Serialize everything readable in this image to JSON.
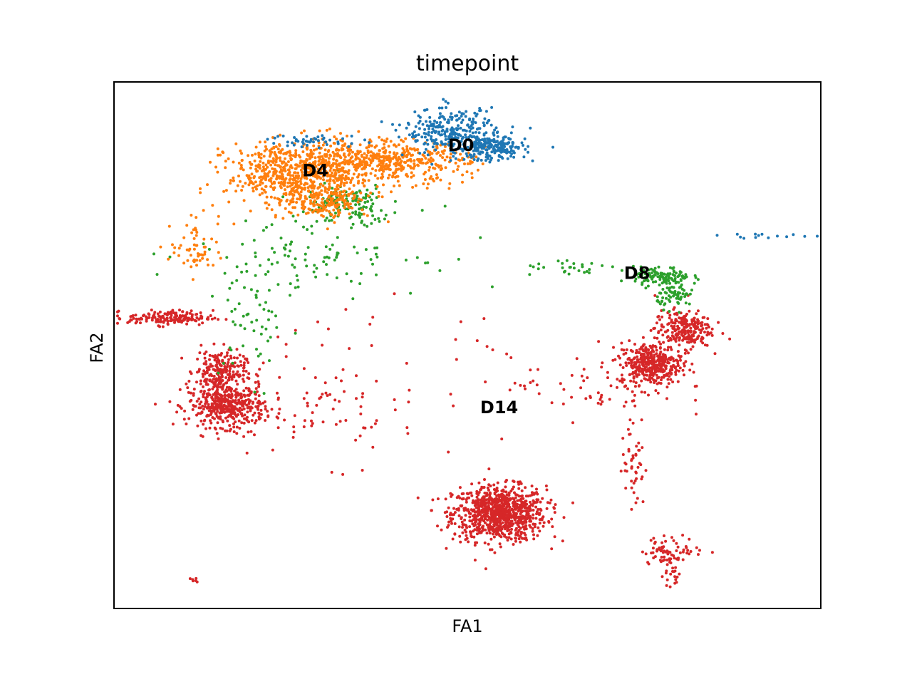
{
  "chart_data": {
    "type": "scatter",
    "title": "timepoint",
    "xlabel": "FA1",
    "ylabel": "FA2",
    "xlim": [
      0,
      100
    ],
    "ylim": [
      0,
      100
    ],
    "grid": false,
    "legend": "on-data",
    "series": [
      {
        "name": "D0",
        "color": "#1f77b4",
        "label_pos": [
          49.1,
          87.8
        ],
        "clusters": [
          {
            "cx": 47.5,
            "cy": 90.5,
            "sx": 3.2,
            "sy": 2.2,
            "n": 260
          },
          {
            "cx": 53.5,
            "cy": 87.5,
            "sx": 2.4,
            "sy": 1.2,
            "n": 220
          },
          {
            "cx": 28.5,
            "cy": 88.8,
            "sx": 3.5,
            "sy": 0.6,
            "n": 45
          },
          {
            "cx": 92.5,
            "cy": 70.8,
            "sx": 3.5,
            "sy": 0.3,
            "n": 14
          }
        ]
      },
      {
        "name": "D4",
        "color": "#ff7f0e",
        "label_pos": [
          28.5,
          83.0
        ],
        "clusters": [
          {
            "cx": 26.0,
            "cy": 82.5,
            "sx": 5.0,
            "sy": 3.0,
            "n": 650
          },
          {
            "cx": 38.0,
            "cy": 85.0,
            "sx": 6.0,
            "sy": 2.0,
            "n": 500
          },
          {
            "cx": 30.0,
            "cy": 77.5,
            "sx": 3.0,
            "sy": 1.6,
            "n": 160
          },
          {
            "cx": 12.0,
            "cy": 68.5,
            "sx": 2.0,
            "sy": 2.6,
            "n": 60
          }
        ]
      },
      {
        "name": "D8",
        "color": "#2ca02c",
        "label_pos": [
          74.0,
          63.5
        ],
        "clusters": [
          {
            "cx": 77.5,
            "cy": 63.0,
            "sx": 2.0,
            "sy": 0.9,
            "n": 120
          },
          {
            "cx": 79.5,
            "cy": 59.5,
            "sx": 1.3,
            "sy": 1.2,
            "n": 70
          },
          {
            "cx": 65.5,
            "cy": 64.5,
            "sx": 4.0,
            "sy": 0.6,
            "n": 28
          },
          {
            "cx": 33.0,
            "cy": 76.5,
            "sx": 3.0,
            "sy": 2.0,
            "n": 130
          },
          {
            "cx": 28.0,
            "cy": 68.0,
            "sx": 8.0,
            "sy": 4.0,
            "n": 110
          },
          {
            "cx": 20.0,
            "cy": 55.0,
            "sx": 2.5,
            "sy": 6.0,
            "n": 55
          }
        ]
      },
      {
        "name": "D14",
        "color": "#d62728",
        "label_pos": [
          54.5,
          38.0
        ],
        "clusters": [
          {
            "cx": 54.5,
            "cy": 18.0,
            "sx": 3.3,
            "sy": 2.6,
            "n": 900
          },
          {
            "cx": 16.0,
            "cy": 38.5,
            "sx": 2.7,
            "sy": 2.0,
            "n": 420
          },
          {
            "cx": 15.0,
            "cy": 45.0,
            "sx": 1.8,
            "sy": 2.0,
            "n": 220
          },
          {
            "cx": 8.0,
            "cy": 55.2,
            "sx": 3.0,
            "sy": 0.7,
            "n": 160
          },
          {
            "cx": 76.0,
            "cy": 46.5,
            "sx": 2.2,
            "sy": 2.0,
            "n": 380
          },
          {
            "cx": 80.5,
            "cy": 53.0,
            "sx": 2.0,
            "sy": 1.8,
            "n": 230
          },
          {
            "cx": 68.0,
            "cy": 42.0,
            "sx": 6.0,
            "sy": 3.0,
            "n": 60
          },
          {
            "cx": 73.5,
            "cy": 28.5,
            "sx": 0.8,
            "sy": 5.0,
            "n": 50
          },
          {
            "cx": 79.0,
            "cy": 11.0,
            "sx": 2.2,
            "sy": 1.3,
            "n": 70
          },
          {
            "cx": 79.0,
            "cy": 6.8,
            "sx": 0.8,
            "sy": 1.5,
            "n": 22
          },
          {
            "cx": 27.0,
            "cy": 38.0,
            "sx": 6.0,
            "sy": 4.0,
            "n": 70
          },
          {
            "cx": 35.0,
            "cy": 45.0,
            "sx": 12.0,
            "sy": 10.0,
            "n": 40
          },
          {
            "cx": 11.5,
            "cy": 5.5,
            "sx": 0.3,
            "sy": 0.3,
            "n": 6
          }
        ]
      }
    ]
  }
}
